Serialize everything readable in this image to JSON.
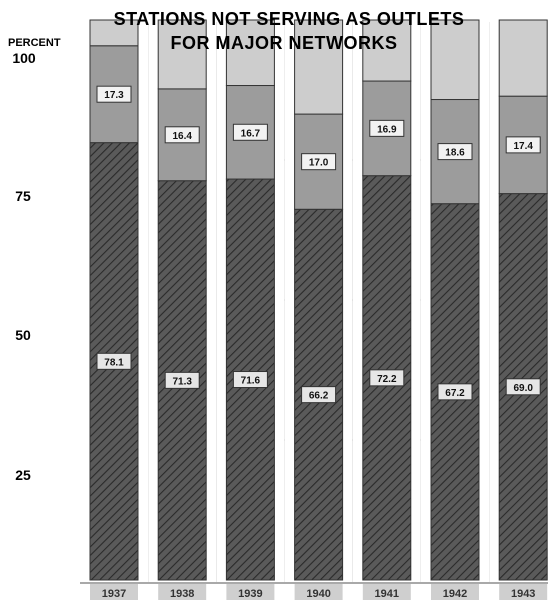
{
  "chart_data": {
    "type": "bar",
    "stacked": true,
    "title": "STATIONS NOT SERVING AS OUTLETS FOR MAJOR NETWORKS",
    "title_lines": [
      "STATIONS NOT SERVING AS OUTLETS",
      "FOR MAJOR NETWORKS"
    ],
    "ylabel": "PERCENT",
    "ylim": [
      0,
      100
    ],
    "yticks": [
      "100",
      "75",
      "50",
      "25"
    ],
    "categories": [
      "1937",
      "1938",
      "1939",
      "1940",
      "1941",
      "1942",
      "1943"
    ],
    "series": [
      {
        "values": [
          78.1,
          71.3,
          71.6,
          66.2,
          72.2,
          67.2,
          69.0
        ],
        "label_text": [
          "78.1",
          "71.3",
          "71.6",
          "66.2",
          "72.2",
          "67.2",
          "69.0"
        ],
        "pattern": "hatched",
        "color": "#4a4a4a"
      },
      {
        "values": [
          17.3,
          16.4,
          16.7,
          17.0,
          16.9,
          18.6,
          17.4
        ],
        "label_text": [
          "17.3",
          "16.4",
          "16.7",
          "17.0",
          "16.9",
          "18.6",
          "17.4"
        ],
        "pattern": "solid",
        "color": "#9c9c9c"
      },
      {
        "values": [
          4.6,
          12.3,
          11.7,
          16.8,
          10.9,
          14.2,
          13.6
        ],
        "pattern": "solid",
        "color": "#cdcdcd"
      }
    ],
    "grid": true,
    "background": "#a9a9a9"
  }
}
